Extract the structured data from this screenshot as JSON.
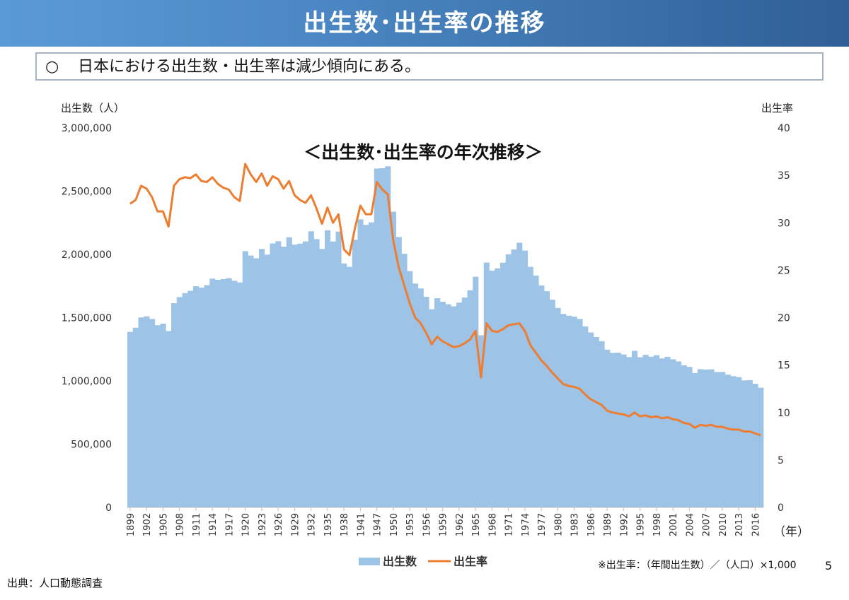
{
  "slide": {
    "title": "出生数･出生率の推移",
    "summary_bullet": "○",
    "summary_text": "日本における出生数・出生率は減少傾向にある。",
    "source": "出典：人口動態調査",
    "page_number": "5"
  },
  "chart_data": {
    "type": "bar",
    "title": "＜出生数･出生率の年次推移＞",
    "y_left_label": "出生数（人）",
    "y_right_label": "出生率",
    "x_unit_label": "（年）",
    "note": "※出生率：（年間出生数）／（人口）×1,000",
    "y_left_range": [
      0,
      3000000
    ],
    "y_left_ticks": [
      "0",
      "500,000",
      "1,000,000",
      "1,500,000",
      "2,000,000",
      "2,500,000",
      "3,000,000"
    ],
    "y_right_range": [
      0,
      40
    ],
    "y_right_ticks": [
      "0",
      "5",
      "10",
      "15",
      "20",
      "25",
      "30",
      "35",
      "40"
    ],
    "x_tick_labels": [
      "1899",
      "1902",
      "1905",
      "1908",
      "1911",
      "1914",
      "1917",
      "1920",
      "1923",
      "1926",
      "1929",
      "1932",
      "1935",
      "1938",
      "1941",
      "1947",
      "1950",
      "1953",
      "1956",
      "1959",
      "1962",
      "1965",
      "1968",
      "1971",
      "1974",
      "1977",
      "1980",
      "1983",
      "1986",
      "1989",
      "1992",
      "1995",
      "1998",
      "2001",
      "2004",
      "2007",
      "2010",
      "2013",
      "2016"
    ],
    "legend": [
      {
        "name": "出生数",
        "color": "#9dc3e6",
        "kind": "bar"
      },
      {
        "name": "出生率",
        "color": "#ed7d31",
        "kind": "line"
      }
    ],
    "x": [
      1899,
      1900,
      1901,
      1902,
      1903,
      1904,
      1905,
      1906,
      1907,
      1908,
      1909,
      1910,
      1911,
      1912,
      1913,
      1914,
      1915,
      1916,
      1917,
      1918,
      1919,
      1920,
      1921,
      1922,
      1923,
      1924,
      1925,
      1926,
      1927,
      1928,
      1929,
      1930,
      1931,
      1932,
      1933,
      1934,
      1935,
      1936,
      1937,
      1938,
      1939,
      1940,
      1941,
      1942,
      1943,
      1947,
      1948,
      1949,
      1950,
      1951,
      1952,
      1953,
      1954,
      1955,
      1956,
      1957,
      1958,
      1959,
      1960,
      1961,
      1962,
      1963,
      1964,
      1965,
      1966,
      1967,
      1968,
      1969,
      1970,
      1971,
      1972,
      1973,
      1974,
      1975,
      1976,
      1977,
      1978,
      1979,
      1980,
      1981,
      1982,
      1983,
      1984,
      1985,
      1986,
      1987,
      1988,
      1989,
      1990,
      1991,
      1992,
      1993,
      1994,
      1995,
      1996,
      1997,
      1998,
      1999,
      2000,
      2001,
      2002,
      2003,
      2004,
      2005,
      2006,
      2007,
      2008,
      2009,
      2010,
      2011,
      2012,
      2013,
      2014,
      2015,
      2016,
      2017
    ],
    "series": [
      {
        "name": "出生数",
        "axis": "left",
        "values": [
          1386981,
          1420534,
          1501591,
          1510835,
          1489816,
          1440371,
          1452770,
          1394295,
          1614472,
          1662815,
          1693850,
          1712857,
          1747803,
          1737674,
          1757441,
          1808402,
          1799326,
          1804822,
          1812413,
          1791992,
          1778685,
          2025564,
          1990876,
          1969314,
          2043297,
          1998520,
          2086091,
          2104405,
          2060737,
          2135852,
          2077026,
          2085101,
          2102784,
          2182742,
          2121253,
          2043783,
          2190704,
          2101969,
          2180734,
          1928321,
          1901573,
          2115867,
          2277283,
          2233660,
          2253535,
          2678792,
          2681624,
          2696638,
          2337507,
          2137689,
          2005162,
          1868040,
          1769580,
          1730692,
          1665278,
          1566713,
          1653469,
          1626088,
          1606041,
          1589372,
          1618616,
          1659521,
          1716761,
          1823697,
          1360974,
          1935647,
          1871839,
          1889815,
          1934239,
          2000973,
          2038682,
          2091983,
          2029989,
          1901440,
          1832617,
          1755100,
          1708643,
          1642580,
          1576889,
          1529455,
          1515392,
          1508687,
          1489780,
          1431577,
          1382946,
          1346658,
          1314006,
          1246802,
          1221585,
          1223245,
          1208989,
          1188282,
          1238328,
          1187064,
          1206555,
          1191665,
          1203147,
          1177669,
          1190547,
          1170662,
          1153855,
          1123610,
          1110721,
          1062530,
          1092674,
          1089818,
          1091156,
          1070035,
          1071304,
          1050806,
          1037231,
          1029816,
          1003539,
          1005677,
          976978,
          946065
        ]
      },
      {
        "name": "出生率",
        "axis": "right",
        "values": [
          32.0,
          32.4,
          33.9,
          33.6,
          32.7,
          31.2,
          31.2,
          29.6,
          33.9,
          34.6,
          34.8,
          34.7,
          35.1,
          34.4,
          34.3,
          34.8,
          34.1,
          33.7,
          33.5,
          32.7,
          32.3,
          36.2,
          35.1,
          34.3,
          35.2,
          33.9,
          34.9,
          34.6,
          33.6,
          34.4,
          32.9,
          32.4,
          32.1,
          32.9,
          31.5,
          29.9,
          31.6,
          30.0,
          30.9,
          27.2,
          26.6,
          29.4,
          31.8,
          30.9,
          30.9,
          34.3,
          33.5,
          33.0,
          28.1,
          25.3,
          23.4,
          21.5,
          20.0,
          19.4,
          18.4,
          17.2,
          18.0,
          17.5,
          17.2,
          16.9,
          17.0,
          17.3,
          17.7,
          18.6,
          13.7,
          19.4,
          18.6,
          18.5,
          18.8,
          19.2,
          19.3,
          19.4,
          18.6,
          17.1,
          16.3,
          15.5,
          14.9,
          14.2,
          13.6,
          13.0,
          12.8,
          12.7,
          12.5,
          11.9,
          11.4,
          11.1,
          10.8,
          10.2,
          10.0,
          9.9,
          9.8,
          9.6,
          10.0,
          9.6,
          9.7,
          9.5,
          9.6,
          9.4,
          9.5,
          9.3,
          9.2,
          8.9,
          8.8,
          8.4,
          8.7,
          8.6,
          8.7,
          8.5,
          8.5,
          8.3,
          8.2,
          8.2,
          8.0,
          8.0,
          7.8,
          7.6
        ]
      }
    ]
  }
}
